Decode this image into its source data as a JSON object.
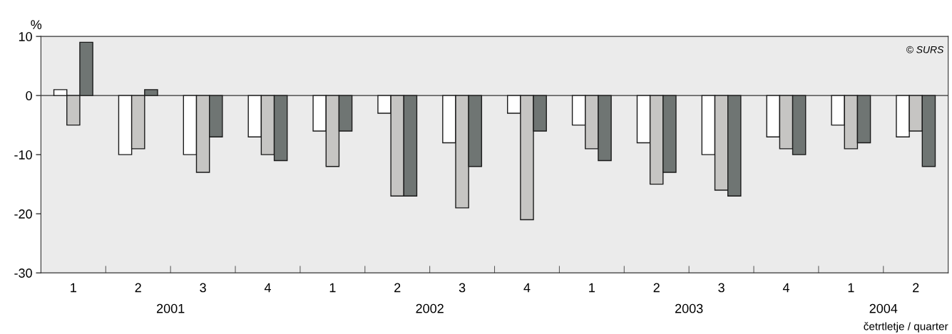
{
  "chart_data": {
    "type": "bar",
    "ylabel": "%",
    "xlabel": "četrtletje / quarter",
    "categories": [
      "1",
      "2",
      "3",
      "4",
      "1",
      "2",
      "3",
      "4",
      "1",
      "2",
      "3",
      "4",
      "1",
      "2"
    ],
    "series": [
      {
        "color": "#ffffff",
        "values": [
          1,
          -10,
          -10,
          -7,
          -6,
          -3,
          -8,
          -3,
          -5,
          -8,
          -10,
          -7,
          -5,
          -7
        ]
      },
      {
        "color": "#c6c5c3",
        "values": [
          -5,
          -9,
          -13,
          -10,
          -12,
          -17,
          -19,
          -21,
          -9,
          -15,
          -16,
          -9,
          -9,
          -6
        ]
      },
      {
        "color": "#6f7573",
        "values": [
          9,
          1,
          -7,
          -11,
          -6,
          -17,
          -12,
          -6,
          -11,
          -13,
          -17,
          -10,
          -8,
          -12
        ]
      }
    ],
    "ylim": [
      -30,
      10
    ],
    "yticks": [
      -30,
      -20,
      -10,
      0,
      10
    ],
    "grid": false,
    "ref_lines": [
      {
        "axis": "y",
        "value": 0,
        "color": "#333333"
      }
    ],
    "annotations": [
      "© SURS",
      "2001",
      "2002",
      "2003",
      "2004"
    ]
  }
}
